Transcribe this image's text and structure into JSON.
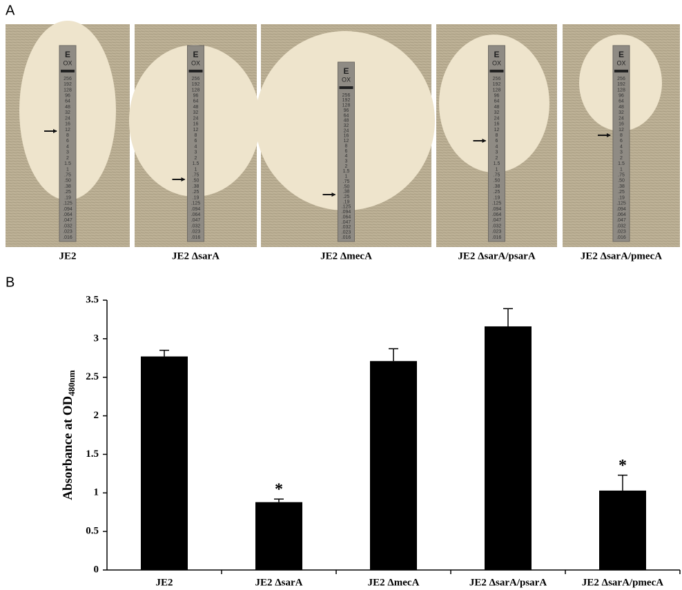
{
  "panel_a": {
    "letter": "A",
    "strip": {
      "brand": "E",
      "drug": "OX",
      "scale": [
        "256",
        "192",
        "128",
        "96",
        "64",
        "48",
        "32",
        "24",
        "16",
        "12",
        "8",
        "6",
        "4",
        "3",
        "2",
        "1.5",
        "1",
        ".75",
        ".50",
        ".38",
        ".25",
        ".19",
        ".125",
        ".094",
        ".064",
        ".047",
        ".032",
        ".023",
        ".016"
      ]
    },
    "labels": [
      "JE2",
      "JE2 ΔsarA",
      "JE2 ΔmecA",
      "JE2 ΔsarA/psarA",
      "JE2 ΔsarA/pmecA"
    ]
  },
  "chart_data": {
    "type": "bar",
    "panel": "B",
    "y_label": "Absorbance at OD",
    "y_label_sub": "480nm",
    "categories": [
      "JE2",
      "JE2 ΔsarA",
      "JE2 ΔmecA",
      "JE2 ΔsarA/psarA",
      "JE2 ΔsarA/pmecA"
    ],
    "values": [
      2.77,
      0.88,
      2.71,
      3.16,
      1.03
    ],
    "errors": [
      0.08,
      0.04,
      0.16,
      0.23,
      0.2
    ],
    "color": "#000000",
    "annotations": [
      {
        "index": 1,
        "text": "*"
      },
      {
        "index": 4,
        "text": "*"
      }
    ],
    "ylim": [
      0,
      3.5
    ],
    "yticks": [
      0,
      0.5,
      1,
      1.5,
      2,
      2.5,
      3,
      3.5
    ],
    "grid": false
  }
}
